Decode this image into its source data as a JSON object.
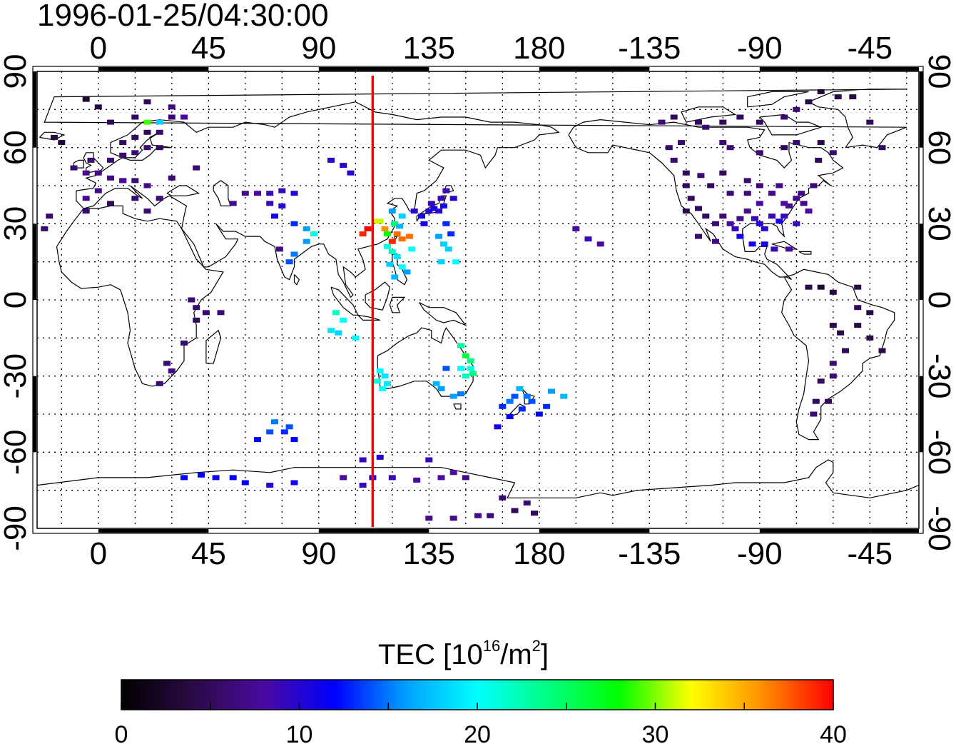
{
  "timestamp": "1996-01-25/04:30:00",
  "map": {
    "lon_ticks": [
      0,
      45,
      90,
      135,
      180,
      -135,
      -90,
      -45
    ],
    "lat_ticks": [
      90,
      60,
      30,
      0,
      -30,
      -60,
      -90
    ],
    "lon_range": [
      -25,
      335
    ],
    "lat_range": [
      -90,
      90
    ],
    "grid": "dotted",
    "terminator_longitude": 112
  },
  "colorbar": {
    "label_main": "TEC  [10",
    "label_sup1": "16",
    "label_mid": "/m",
    "label_sup2": "2",
    "label_end": "]",
    "min": 0,
    "max": 40,
    "tick_values": [
      "0",
      "10",
      "20",
      "30",
      "40"
    ],
    "stops": [
      "#000000",
      "#2a0a45",
      "#4a0aa0",
      "#0000ff",
      "#00a0ff",
      "#00ffff",
      "#00ff80",
      "#00ff00",
      "#ffff00",
      "#ff9000",
      "#ff0000"
    ]
  },
  "chart_data": {
    "type": "heatmap",
    "x_quantity": "longitude",
    "y_quantity": "latitude",
    "value_quantity": "TEC",
    "points": [
      [
        -18,
        64,
        4
      ],
      [
        -15,
        62,
        3
      ],
      [
        -20,
        33,
        6
      ],
      [
        -22,
        28,
        6
      ],
      [
        -10,
        52,
        6
      ],
      [
        -5,
        50,
        7
      ],
      [
        0,
        50,
        7
      ],
      [
        5,
        48,
        7
      ],
      [
        10,
        47,
        7
      ],
      [
        15,
        47,
        6
      ],
      [
        -3,
        55,
        6
      ],
      [
        5,
        55,
        6
      ],
      [
        10,
        57,
        6
      ],
      [
        15,
        58,
        6
      ],
      [
        20,
        60,
        6
      ],
      [
        25,
        60,
        5
      ],
      [
        10,
        62,
        5
      ],
      [
        15,
        64,
        5
      ],
      [
        20,
        66,
        5
      ],
      [
        25,
        66,
        6
      ],
      [
        20,
        70,
        29
      ],
      [
        25,
        70,
        18
      ],
      [
        5,
        70,
        5
      ],
      [
        15,
        72,
        5
      ],
      [
        30,
        72,
        6
      ],
      [
        35,
        72,
        8
      ],
      [
        30,
        76,
        7
      ],
      [
        20,
        78,
        5
      ],
      [
        0,
        76,
        4
      ],
      [
        -5,
        79,
        3
      ],
      [
        10,
        47,
        8
      ],
      [
        20,
        45,
        7
      ],
      [
        0,
        43,
        7
      ],
      [
        -5,
        40,
        7
      ],
      [
        15,
        40,
        6
      ],
      [
        5,
        38,
        5
      ],
      [
        25,
        40,
        6
      ],
      [
        30,
        48,
        6
      ],
      [
        40,
        52,
        6
      ],
      [
        20,
        35,
        6
      ],
      [
        -5,
        35,
        6
      ],
      [
        28,
        -25,
        6
      ],
      [
        30,
        -28,
        7
      ],
      [
        25,
        -33,
        6
      ],
      [
        35,
        -17,
        6
      ],
      [
        40,
        -3,
        6
      ],
      [
        38,
        0,
        6
      ],
      [
        40,
        -8,
        5
      ],
      [
        44,
        -5,
        6
      ],
      [
        50,
        -5,
        6
      ],
      [
        65,
        42,
        8
      ],
      [
        70,
        42,
        9
      ],
      [
        75,
        43,
        9
      ],
      [
        80,
        42,
        10
      ],
      [
        60,
        42,
        7
      ],
      [
        55,
        38,
        7
      ],
      [
        70,
        38,
        9
      ],
      [
        75,
        37,
        10
      ],
      [
        72,
        33,
        11
      ],
      [
        80,
        30,
        13
      ],
      [
        85,
        28,
        16
      ],
      [
        88,
        26,
        21
      ],
      [
        80,
        18,
        15
      ],
      [
        78,
        15,
        14
      ],
      [
        85,
        23,
        16
      ],
      [
        74,
        20,
        7
      ],
      [
        95,
        55,
        10
      ],
      [
        100,
        53,
        10
      ],
      [
        103,
        50,
        10
      ],
      [
        97,
        -5,
        22
      ],
      [
        95,
        -12,
        19
      ],
      [
        98,
        -13,
        18
      ],
      [
        100,
        -8,
        20
      ],
      [
        105,
        -15,
        20
      ],
      [
        113,
        31,
        33
      ],
      [
        115,
        31,
        31
      ],
      [
        117,
        28,
        36
      ],
      [
        118,
        26,
        28
      ],
      [
        120,
        23,
        39
      ],
      [
        122,
        26,
        37
      ],
      [
        124,
        24,
        37
      ],
      [
        127,
        25,
        37
      ],
      [
        121,
        30,
        24
      ],
      [
        123,
        29,
        17
      ],
      [
        124,
        33,
        18
      ],
      [
        120,
        35,
        16
      ],
      [
        118,
        21,
        21
      ],
      [
        120,
        19,
        22
      ],
      [
        122,
        17,
        19
      ],
      [
        119,
        14,
        18
      ],
      [
        124,
        13,
        20
      ],
      [
        126,
        11,
        16
      ],
      [
        128,
        20,
        20
      ],
      [
        121,
        9,
        17
      ],
      [
        110,
        28,
        40
      ],
      [
        108,
        26,
        39
      ],
      [
        129,
        35,
        10
      ],
      [
        132,
        33,
        11
      ],
      [
        135,
        35,
        10
      ],
      [
        137,
        36,
        11
      ],
      [
        139,
        35,
        10
      ],
      [
        141,
        37,
        11
      ],
      [
        140,
        40,
        9
      ],
      [
        145,
        40,
        10
      ],
      [
        142,
        43,
        9
      ],
      [
        136,
        38,
        9
      ],
      [
        133,
        30,
        11
      ],
      [
        142,
        30,
        13
      ],
      [
        144,
        26,
        13
      ],
      [
        139,
        25,
        16
      ],
      [
        141,
        22,
        18
      ],
      [
        143,
        20,
        18
      ],
      [
        146,
        15,
        20
      ],
      [
        140,
        15,
        18
      ],
      [
        115,
        -28,
        20
      ],
      [
        117,
        -30,
        19
      ],
      [
        114,
        -32,
        21
      ],
      [
        116,
        -35,
        20
      ],
      [
        118,
        -33,
        19
      ],
      [
        150,
        -22,
        26
      ],
      [
        152,
        -24,
        24
      ],
      [
        148,
        -18,
        23
      ],
      [
        148,
        -27,
        20
      ],
      [
        152,
        -27,
        21
      ],
      [
        150,
        -30,
        22
      ],
      [
        145,
        -38,
        16
      ],
      [
        148,
        -37,
        15
      ],
      [
        140,
        -35,
        16
      ],
      [
        138,
        -33,
        17
      ],
      [
        153,
        -29,
        24
      ],
      [
        142,
        -27,
        14
      ],
      [
        165,
        -42,
        13
      ],
      [
        170,
        -38,
        14
      ],
      [
        175,
        -38,
        15
      ],
      [
        173,
        -43,
        13
      ],
      [
        168,
        -46,
        12
      ],
      [
        172,
        -35,
        17
      ],
      [
        177,
        -40,
        14
      ],
      [
        180,
        -45,
        12
      ],
      [
        183,
        -42,
        13
      ],
      [
        185,
        -36,
        16
      ],
      [
        190,
        -38,
        17
      ],
      [
        168,
        -40,
        15
      ],
      [
        163,
        -50,
        11
      ],
      [
        70,
        -52,
        14
      ],
      [
        72,
        -48,
        15
      ],
      [
        76,
        -52,
        13
      ],
      [
        80,
        -55,
        12
      ],
      [
        78,
        -50,
        14
      ],
      [
        65,
        -55,
        12
      ],
      [
        60,
        -72,
        12
      ],
      [
        55,
        -70,
        12
      ],
      [
        48,
        -70,
        11
      ],
      [
        42,
        -69,
        12
      ],
      [
        35,
        -70,
        12
      ],
      [
        70,
        -73,
        10
      ],
      [
        80,
        -72,
        11
      ],
      [
        100,
        -70,
        8
      ],
      [
        108,
        -73,
        9
      ],
      [
        112,
        -70,
        10
      ],
      [
        120,
        -70,
        9
      ],
      [
        130,
        -71,
        8
      ],
      [
        140,
        -70,
        8
      ],
      [
        145,
        -68,
        8
      ],
      [
        150,
        -70,
        7
      ],
      [
        108,
        -63,
        9
      ],
      [
        115,
        -62,
        10
      ],
      [
        135,
        -63,
        9
      ],
      [
        155,
        -85,
        7
      ],
      [
        160,
        -85,
        6
      ],
      [
        145,
        -86,
        7
      ],
      [
        135,
        -86,
        7
      ],
      [
        165,
        -78,
        6
      ],
      [
        175,
        -80,
        6
      ],
      [
        178,
        -84,
        5
      ],
      [
        170,
        -83,
        5
      ],
      [
        195,
        28,
        8
      ],
      [
        200,
        24,
        9
      ],
      [
        205,
        22,
        8
      ],
      [
        235,
        55,
        6
      ],
      [
        240,
        50,
        5
      ],
      [
        240,
        45,
        5
      ],
      [
        242,
        40,
        5
      ],
      [
        245,
        36,
        5
      ],
      [
        248,
        33,
        5
      ],
      [
        252,
        30,
        6
      ],
      [
        255,
        33,
        6
      ],
      [
        258,
        30,
        8
      ],
      [
        260,
        28,
        9
      ],
      [
        262,
        32,
        7
      ],
      [
        265,
        35,
        7
      ],
      [
        268,
        32,
        9
      ],
      [
        270,
        30,
        10
      ],
      [
        272,
        28,
        10
      ],
      [
        275,
        33,
        9
      ],
      [
        278,
        31,
        11
      ],
      [
        280,
        33,
        9
      ],
      [
        282,
        37,
        7
      ],
      [
        285,
        40,
        7
      ],
      [
        287,
        42,
        7
      ],
      [
        285,
        30,
        9
      ],
      [
        290,
        35,
        8
      ],
      [
        292,
        45,
        6
      ],
      [
        278,
        45,
        7
      ],
      [
        270,
        45,
        6
      ],
      [
        265,
        42,
        6
      ],
      [
        258,
        42,
        6
      ],
      [
        250,
        45,
        5
      ],
      [
        246,
        49,
        6
      ],
      [
        255,
        50,
        5
      ],
      [
        265,
        47,
        6
      ],
      [
        275,
        42,
        7
      ],
      [
        270,
        38,
        8
      ],
      [
        280,
        38,
        8
      ],
      [
        288,
        38,
        7
      ],
      [
        262,
        25,
        11
      ],
      [
        267,
        22,
        11
      ],
      [
        272,
        22,
        11
      ],
      [
        276,
        20,
        9
      ],
      [
        282,
        20,
        8
      ],
      [
        252,
        23,
        7
      ],
      [
        245,
        25,
        6
      ],
      [
        240,
        35,
        4
      ],
      [
        233,
        60,
        6
      ],
      [
        238,
        62,
        6
      ],
      [
        255,
        62,
        6
      ],
      [
        258,
        60,
        6
      ],
      [
        280,
        60,
        5
      ],
      [
        285,
        62,
        6
      ],
      [
        270,
        58,
        6
      ],
      [
        295,
        62,
        4
      ],
      [
        300,
        58,
        6
      ],
      [
        294,
        55,
        5
      ],
      [
        230,
        70,
        6
      ],
      [
        235,
        72,
        5
      ],
      [
        245,
        70,
        5
      ],
      [
        248,
        68,
        6
      ],
      [
        255,
        70,
        5
      ],
      [
        262,
        72,
        5
      ],
      [
        270,
        70,
        5
      ],
      [
        280,
        72,
        6
      ],
      [
        285,
        75,
        6
      ],
      [
        290,
        78,
        4
      ],
      [
        295,
        82,
        3
      ],
      [
        302,
        80,
        4
      ],
      [
        308,
        80,
        4
      ],
      [
        315,
        70,
        5
      ],
      [
        320,
        60,
        5
      ],
      [
        290,
        5,
        4
      ],
      [
        295,
        5,
        3
      ],
      [
        300,
        -10,
        4
      ],
      [
        303,
        -13,
        4
      ],
      [
        310,
        -3,
        5
      ],
      [
        315,
        -5,
        4
      ],
      [
        310,
        -10,
        4
      ],
      [
        305,
        -20,
        5
      ],
      [
        300,
        -25,
        6
      ],
      [
        300,
        -30,
        6
      ],
      [
        295,
        -32,
        5
      ],
      [
        293,
        -40,
        5
      ],
      [
        292,
        -45,
        6
      ],
      [
        298,
        -40,
        5
      ],
      [
        300,
        3,
        4
      ],
      [
        310,
        5,
        4
      ],
      [
        315,
        -15,
        4
      ],
      [
        320,
        -20,
        4
      ]
    ]
  }
}
